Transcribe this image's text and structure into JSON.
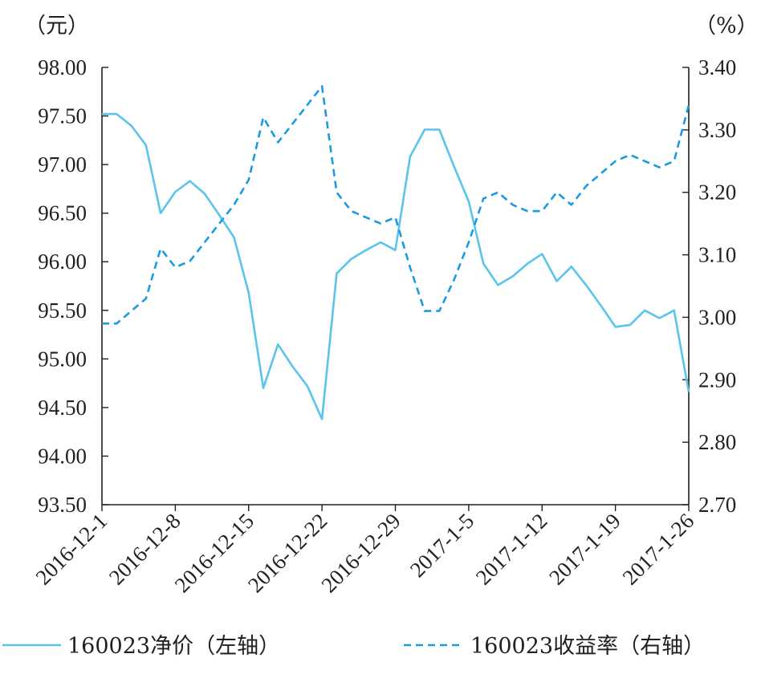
{
  "chart_data": {
    "type": "line",
    "x_ticks": [
      "2016-12-1",
      "2016-12-8",
      "2016-12-15",
      "2016-12-22",
      "2016-12-29",
      "2017-1-5",
      "2017-1-12",
      "2017-1-19",
      "2017-1-26"
    ],
    "left_axis": {
      "unit_label": "（元）",
      "ylim": [
        93.5,
        98.0
      ],
      "ticks": [
        "93.50",
        "94.00",
        "94.50",
        "95.00",
        "95.50",
        "96.00",
        "96.50",
        "97.00",
        "97.50",
        "98.00"
      ]
    },
    "right_axis": {
      "unit_label": "（%）",
      "ylim": [
        2.7,
        3.4
      ],
      "ticks": [
        "2.70",
        "2.80",
        "2.90",
        "3.00",
        "3.10",
        "3.20",
        "3.30",
        "3.40"
      ]
    },
    "series": [
      {
        "name": "160023净价（左轴）",
        "axis": "left",
        "style": "solid",
        "color": "#5bc4eb",
        "x": [
          0,
          0.2,
          0.4,
          0.6,
          0.8,
          1.0,
          1.2,
          1.4,
          1.6,
          1.8,
          2.0,
          2.2,
          2.4,
          2.6,
          2.8,
          3.0,
          3.2,
          3.4,
          3.6,
          3.8,
          4.0,
          4.2,
          4.4,
          4.6,
          4.8,
          5.0,
          5.2,
          5.4,
          5.6,
          5.8,
          6.0,
          6.2,
          6.4,
          6.6,
          6.8,
          7.0,
          7.2,
          7.4,
          7.6,
          7.8,
          8.0
        ],
        "values": [
          97.52,
          97.52,
          97.4,
          97.2,
          96.5,
          96.72,
          96.83,
          96.7,
          96.48,
          96.25,
          95.68,
          94.7,
          95.15,
          94.92,
          94.72,
          94.38,
          95.88,
          96.03,
          96.12,
          96.2,
          96.12,
          97.08,
          97.36,
          97.36,
          96.98,
          96.62,
          95.98,
          95.76,
          95.85,
          95.98,
          96.08,
          95.8,
          95.95,
          95.76,
          95.55,
          95.33,
          95.35,
          95.5,
          95.42,
          95.5,
          94.66
        ]
      },
      {
        "name": "160023收益率（右轴）",
        "axis": "right",
        "style": "dashed",
        "color": "#1a9be0",
        "x": [
          0,
          0.2,
          0.4,
          0.6,
          0.8,
          1.0,
          1.2,
          1.4,
          1.6,
          1.8,
          2.0,
          2.2,
          2.4,
          2.6,
          2.8,
          3.0,
          3.2,
          3.4,
          3.6,
          3.8,
          4.0,
          4.2,
          4.4,
          4.6,
          4.8,
          5.0,
          5.2,
          5.4,
          5.6,
          5.8,
          6.0,
          6.2,
          6.4,
          6.6,
          6.8,
          7.0,
          7.2,
          7.4,
          7.6,
          7.8,
          8.0
        ],
        "values": [
          2.99,
          2.99,
          3.01,
          3.03,
          3.11,
          3.08,
          3.09,
          3.12,
          3.15,
          3.18,
          3.22,
          3.32,
          3.28,
          3.31,
          3.34,
          3.37,
          3.2,
          3.17,
          3.16,
          3.15,
          3.16,
          3.08,
          3.01,
          3.01,
          3.06,
          3.12,
          3.19,
          3.2,
          3.18,
          3.17,
          3.17,
          3.2,
          3.18,
          3.21,
          3.23,
          3.25,
          3.26,
          3.25,
          3.24,
          3.25,
          3.34
        ]
      }
    ],
    "grid": false,
    "legend_placement": "bottom"
  }
}
